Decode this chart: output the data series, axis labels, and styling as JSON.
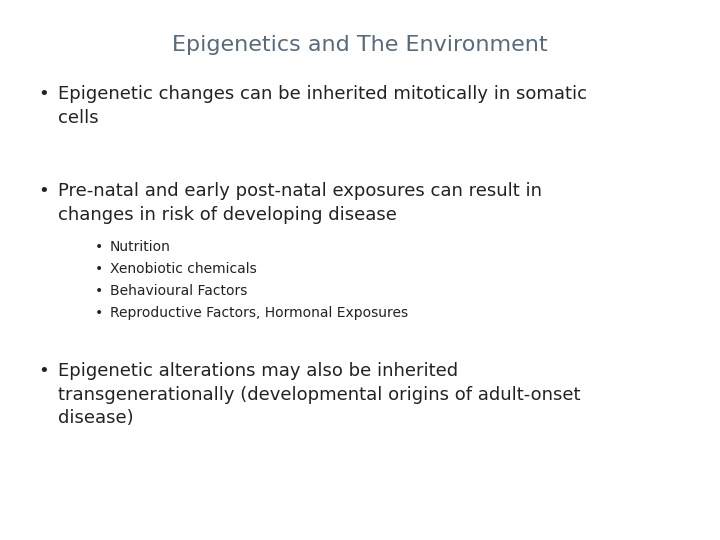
{
  "title": "Epigenetics and The Environment",
  "title_color": "#5a6a7a",
  "title_fontsize": 16,
  "background_color": "#ffffff",
  "text_color": "#222222",
  "bullet1": "Epigenetic changes can be inherited mitotically in somatic\ncells",
  "bullet2": "Pre-natal and early post-natal exposures can result in\nchanges in risk of developing disease",
  "sub_bullets": [
    "Nutrition",
    "Xenobiotic chemicals",
    "Behavioural Factors",
    "Reproductive Factors, Hormonal Exposures"
  ],
  "bullet3": "Epigenetic alterations may also be inherited\ntransgenerationally (developmental origins of adult-onset\ndisease)",
  "main_font_size": 13,
  "sub_font_size": 10,
  "font_family": "DejaVu Sans"
}
